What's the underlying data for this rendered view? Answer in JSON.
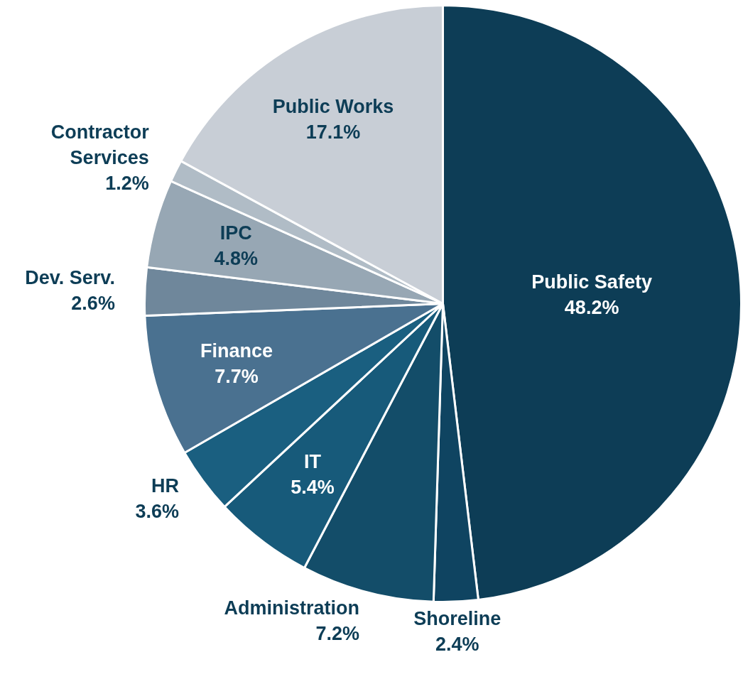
{
  "chart_data": {
    "type": "pie",
    "categories": [
      "Public Safety",
      "Shoreline",
      "Administration",
      "IT",
      "HR",
      "Finance",
      "Dev. Serv.",
      "IPC",
      "Contractor Services",
      "Public Works"
    ],
    "values": [
      48.2,
      2.4,
      7.2,
      5.4,
      3.6,
      7.7,
      2.6,
      4.8,
      1.2,
      17.1
    ],
    "value_labels": [
      "48.2%",
      "2.4%",
      "7.2%",
      "5.4%",
      "3.6%",
      "7.7%",
      "2.6%",
      "4.8%",
      "1.2%",
      "17.1%"
    ],
    "colors": [
      "#0d3d56",
      "#0f4461",
      "#134d69",
      "#175a7a",
      "#1a5f80",
      "#4a7190",
      "#6f879b",
      "#97a7b4",
      "#b0bcc6",
      "#c8ced6"
    ]
  }
}
